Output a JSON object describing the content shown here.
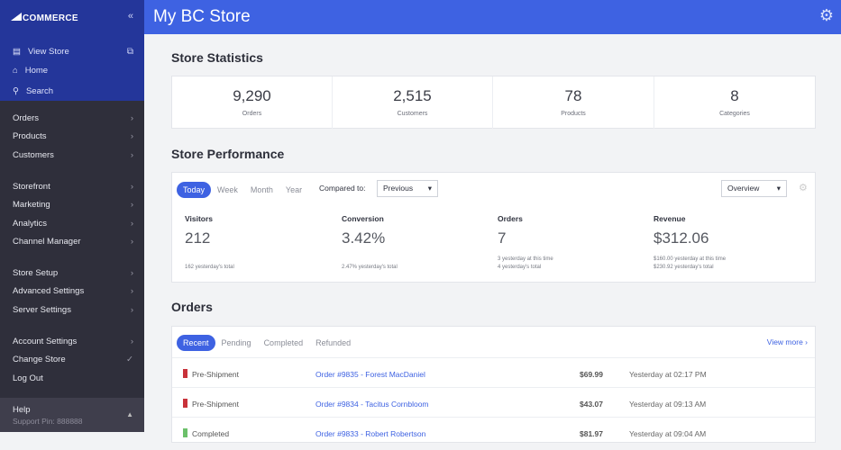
{
  "sidebar": {
    "logo": "BIGCOMMERCE",
    "top": [
      {
        "label": "View Store",
        "icon": "store-icon"
      },
      {
        "label": "Home",
        "icon": "home-icon"
      },
      {
        "label": "Search",
        "icon": "search-icon"
      }
    ],
    "groups": [
      [
        "Orders",
        "Products",
        "Customers"
      ],
      [
        "Storefront",
        "Marketing",
        "Analytics",
        "Channel Manager"
      ],
      [
        "Store Setup",
        "Advanced Settings",
        "Server Settings"
      ],
      [
        "Account Settings",
        "Change Store",
        "Log Out"
      ]
    ],
    "help": {
      "title": "Help",
      "support": "Support Pin: 888888"
    }
  },
  "header": {
    "title": "My BC Store"
  },
  "statistics": {
    "title": "Store Statistics",
    "items": [
      {
        "value": "9,290",
        "label": "Orders"
      },
      {
        "value": "2,515",
        "label": "Customers"
      },
      {
        "value": "78",
        "label": "Products"
      },
      {
        "value": "8",
        "label": "Categories"
      }
    ]
  },
  "performance": {
    "title": "Store Performance",
    "tabs": [
      "Today",
      "Week",
      "Month",
      "Year"
    ],
    "active_tab": "Today",
    "compared_label": "Compared to:",
    "compared_value": "Previous",
    "view_value": "Overview",
    "metrics": [
      {
        "label": "Visitors",
        "value": "212",
        "sub1": "",
        "sub2": "162 yesterday's total"
      },
      {
        "label": "Conversion",
        "value": "3.42%",
        "sub1": "",
        "sub2": "2.47% yesterday's total"
      },
      {
        "label": "Orders",
        "value": "7",
        "sub1": "3 yesterday at this time",
        "sub2": "4 yesterday's total"
      },
      {
        "label": "Revenue",
        "value": "$312.06",
        "sub1": "$160.00 yesterday at this time",
        "sub2": "$230.92 yesterday's total"
      }
    ]
  },
  "orders": {
    "title": "Orders",
    "tabs": [
      "Recent",
      "Pending",
      "Completed",
      "Refunded"
    ],
    "active_tab": "Recent",
    "view_more": "View more",
    "rows": [
      {
        "status": "Pre-Shipment",
        "status_color": "#c8323a",
        "order": "Order #9835 - Forest MacDaniel",
        "amount": "$69.99",
        "date": "Yesterday at 02:17 PM"
      },
      {
        "status": "Pre-Shipment",
        "status_color": "#c8323a",
        "order": "Order #9834 - Tacitus Cornbloom",
        "amount": "$43.07",
        "date": "Yesterday at 09:13 AM"
      },
      {
        "status": "Completed",
        "status_color": "#6cc06a",
        "order": "Order #9833 - Robert Robertson",
        "amount": "$81.97",
        "date": "Yesterday at 09:04 AM"
      }
    ]
  }
}
